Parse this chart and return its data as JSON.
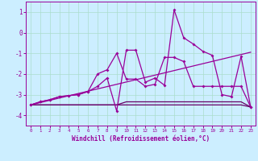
{
  "bg_color": "#cceeff",
  "grid_color": "#aaddcc",
  "line_color": "#990099",
  "line_color_dark": "#660066",
  "xlabel": "Windchill (Refroidissement éolien,°C)",
  "x_hours": [
    0,
    1,
    2,
    3,
    4,
    5,
    6,
    7,
    8,
    9,
    10,
    11,
    12,
    13,
    14,
    15,
    16,
    17,
    18,
    19,
    20,
    21,
    22,
    23
  ],
  "series_zigzag": [
    -3.5,
    -3.35,
    -3.25,
    -3.1,
    -3.05,
    -3.0,
    -2.85,
    -2.6,
    -2.2,
    -3.8,
    -0.85,
    -0.85,
    -2.4,
    -2.2,
    -2.55,
    1.1,
    -0.25,
    -0.55,
    -0.9,
    -1.1,
    -3.0,
    -3.1,
    -1.15,
    -3.6
  ],
  "series_smooth": [
    -3.5,
    -3.35,
    -3.25,
    -3.1,
    -3.05,
    -3.0,
    -2.85,
    -2.0,
    -1.8,
    -1.0,
    -2.25,
    -2.25,
    -2.6,
    -2.5,
    -1.2,
    -1.2,
    -1.4,
    -2.6,
    -2.6,
    -2.6,
    -2.6,
    -2.6,
    -2.6,
    -3.6
  ],
  "series_flat": [
    -3.5,
    -3.5,
    -3.5,
    -3.5,
    -3.5,
    -3.5,
    -3.5,
    -3.5,
    -3.5,
    -3.5,
    -3.5,
    -3.5,
    -3.5,
    -3.5,
    -3.5,
    -3.5,
    -3.5,
    -3.5,
    -3.5,
    -3.5,
    -3.5,
    -3.5,
    -3.5,
    -3.6
  ],
  "series_flat2": [
    -3.5,
    -3.5,
    -3.5,
    -3.5,
    -3.5,
    -3.5,
    -3.5,
    -3.5,
    -3.5,
    -3.5,
    -3.35,
    -3.35,
    -3.35,
    -3.35,
    -3.35,
    -3.35,
    -3.35,
    -3.35,
    -3.35,
    -3.35,
    -3.35,
    -3.35,
    -3.35,
    -3.6
  ],
  "trend_x": [
    0,
    23
  ],
  "trend_y": [
    -3.5,
    -0.95
  ],
  "ylim": [
    -4.5,
    1.5
  ],
  "xlim": [
    -0.5,
    23.5
  ],
  "yticks": [
    -4,
    -3,
    -2,
    -1,
    0,
    1
  ],
  "xticks": [
    0,
    1,
    2,
    3,
    4,
    5,
    6,
    7,
    8,
    9,
    10,
    11,
    12,
    13,
    14,
    15,
    16,
    17,
    18,
    19,
    20,
    21,
    22,
    23
  ]
}
